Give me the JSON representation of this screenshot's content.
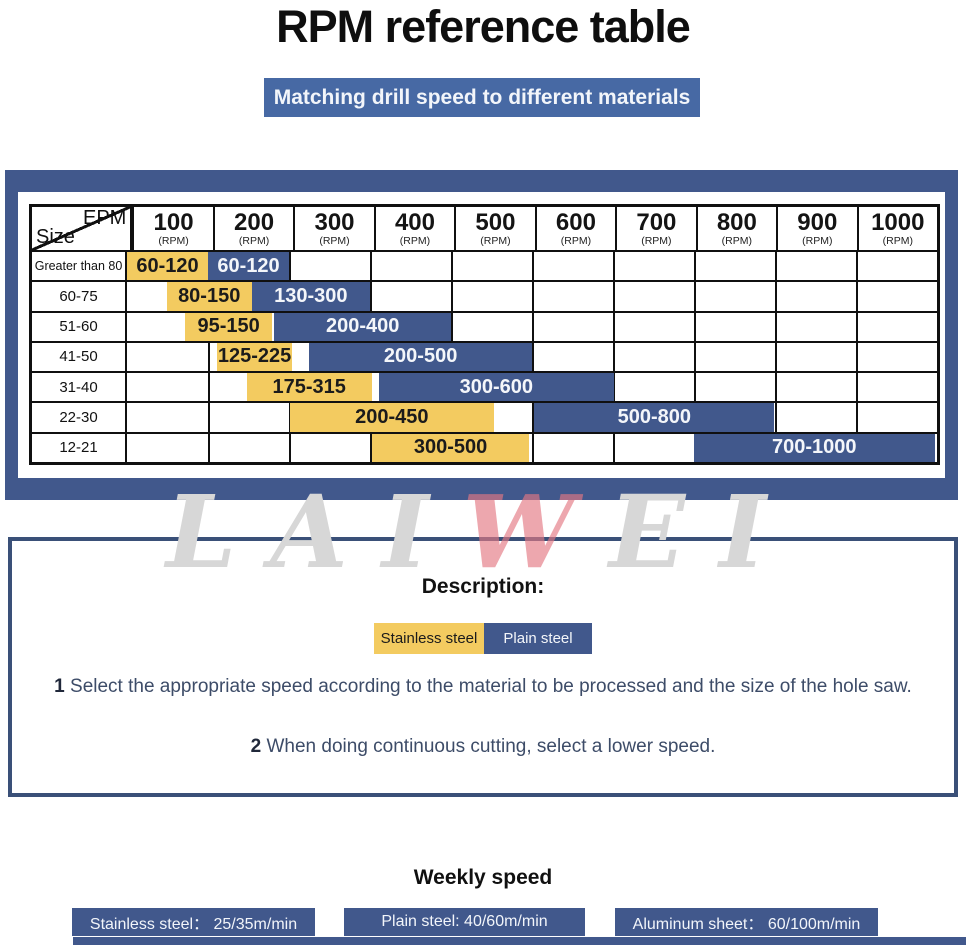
{
  "title": "RPM reference table",
  "banner": {
    "label": "Matching drill speed to different materials"
  },
  "rpm_table": {
    "corner": {
      "top": "EPM",
      "bottom": "Size"
    },
    "unit_label": "(RPM)",
    "rpm_columns": [
      "100",
      "200",
      "300",
      "400",
      "500",
      "600",
      "700",
      "800",
      "900",
      "1000"
    ],
    "rows": [
      {
        "size_label": "Greater than 80",
        "bars": [
          {
            "color": "stainless",
            "label": "60-120",
            "start": 0,
            "end": 1
          },
          {
            "color": "plain",
            "label": "60-120",
            "start": 1,
            "end": 2
          }
        ]
      },
      {
        "size_label": "60-75",
        "bars": [
          {
            "color": "stainless",
            "label": "80-150",
            "start": 0.49,
            "end": 1.54
          },
          {
            "color": "plain",
            "label": "130-300",
            "start": 1.54,
            "end": 3.0
          }
        ]
      },
      {
        "size_label": "51-60",
        "bars": [
          {
            "color": "stainless",
            "label": "95-150",
            "start": 0.72,
            "end": 1.79
          },
          {
            "color": "plain",
            "label": "200-400",
            "start": 1.82,
            "end": 4.0
          }
        ]
      },
      {
        "size_label": "41-50",
        "bars": [
          {
            "color": "stainless",
            "label": "125-225",
            "start": 1.11,
            "end": 2.04
          },
          {
            "color": "plain",
            "label": "200-500",
            "start": 2.25,
            "end": 5.0
          }
        ]
      },
      {
        "size_label": "31-40",
        "bars": [
          {
            "color": "stainless",
            "label": "175-315",
            "start": 1.48,
            "end": 3.02
          },
          {
            "color": "plain",
            "label": "300-600",
            "start": 3.11,
            "end": 6.01
          }
        ]
      },
      {
        "size_label": "22-30",
        "bars": [
          {
            "color": "stainless",
            "label": "200-450",
            "start": 2.01,
            "end": 4.53
          },
          {
            "color": "plain",
            "label": "500-800",
            "start": 5.03,
            "end": 7.99
          }
        ]
      },
      {
        "size_label": "12-21",
        "bars": [
          {
            "color": "stainless",
            "label": "300-500",
            "start": 3.03,
            "end": 4.96
          },
          {
            "color": "plain",
            "label": "700-1000",
            "start": 7.0,
            "end": 9.97
          }
        ]
      }
    ]
  },
  "watermark": {
    "text": "LAIWEI",
    "red_letter_index": 3
  },
  "description": {
    "heading": "Description:",
    "legend": [
      {
        "label": "Stainless steel",
        "color": "stainless"
      },
      {
        "label": "Plain steel",
        "color": "plain"
      }
    ],
    "notes": [
      {
        "num": "1",
        "text": "Select the appropriate speed according to the material to be processed and the size of the hole saw."
      },
      {
        "num": "2",
        "text": "When doing continuous cutting, select a lower speed."
      }
    ]
  },
  "footer": {
    "heading": "Weekly speed",
    "badges": [
      {
        "label": "Stainless steel： 25/35m/min"
      },
      {
        "label": "Plain steel:  40/60m/min"
      },
      {
        "label": "Aluminum sheet： 60/100m/min"
      }
    ]
  },
  "colors": {
    "stainless_yellow": "#f3cb60",
    "plain_blue": "#41588c",
    "banner_blue": "#4769a4",
    "frame_blue": "#41588c",
    "border_navy": "#3a5078",
    "note_text": "#3d4c68"
  }
}
